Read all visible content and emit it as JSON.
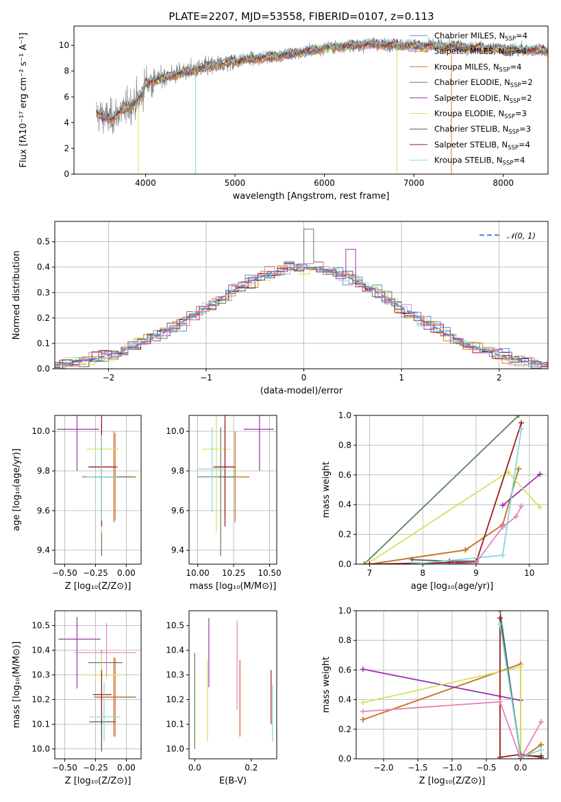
{
  "page": {
    "title": "PLATE=2207, MJD=53558, FIBERID=0107, z=0.113"
  },
  "series": [
    {
      "name": "Chabrier MILES, N$_{SSP}$=4",
      "label": "Chabrier MILES, N",
      "sub": "SSP",
      "tail": "=4",
      "color": "#5b8ed6"
    },
    {
      "name": "Salpeter MILES, N$_{SSP}$=4",
      "label": "Salpeter MILES, N",
      "sub": "SSP",
      "tail": "=4",
      "color": "#e8702a"
    },
    {
      "name": "Kroupa MILES, N$_{SSP}$=4",
      "label": "Kroupa MILES, N",
      "sub": "SSP",
      "tail": "=4",
      "color": "#c87a2a"
    },
    {
      "name": "Chabrier ELODIE, N$_{SSP}$=2",
      "label": "Chabrier ELODIE, N",
      "sub": "SSP",
      "tail": "=2",
      "color": "#5a7f5a"
    },
    {
      "name": "Salpeter ELODIE, N$_{SSP}$=2",
      "label": "Salpeter ELODIE, N",
      "sub": "SSP",
      "tail": "=2",
      "color": "#9c2fae"
    },
    {
      "name": "Kroupa ELODIE, N$_{SSP}$=3",
      "label": "Kroupa ELODIE, N",
      "sub": "SSP",
      "tail": "=3",
      "color": "#d4e25a"
    },
    {
      "name": "Chabrier STELIB, N$_{SSP}$=3",
      "label": "Chabrier STELIB, N",
      "sub": "SSP",
      "tail": "=3",
      "color": "#555555"
    },
    {
      "name": "Salpeter STELIB, N$_{SSP}$=4",
      "label": "Salpeter STELIB, N",
      "sub": "SSP",
      "tail": "=4",
      "color": "#9b1c1c"
    },
    {
      "name": "Kroupa STELIB, N$_{SSP}$=4",
      "label": "Kroupa STELIB, N",
      "sub": "SSP",
      "tail": "=4",
      "color": "#7fd8e0"
    }
  ],
  "chart_data": [
    {
      "id": "spectrum",
      "type": "line",
      "title": "PLATE=2207, MJD=53558, FIBERID=0107, z=0.113",
      "xlabel": "wavelength [Angstrom, rest frame]",
      "ylabel": "Flux [fλ10⁻¹⁷ erg cm⁻² s⁻¹ A⁻¹]",
      "xlim": [
        3200,
        8500
      ],
      "ylim": [
        0,
        11.5
      ],
      "xticks": [
        4000,
        5000,
        6000,
        7000,
        8000
      ],
      "yticks": [
        0,
        2,
        4,
        6,
        8,
        10
      ],
      "grid": false,
      "legend": "top-right",
      "continuum_x": [
        3450,
        3600,
        3800,
        3950,
        4000,
        4300,
        4600,
        5000,
        5500,
        6000,
        6500,
        7000,
        7500,
        8000,
        8500
      ],
      "continuum_y": [
        4.7,
        4.3,
        5.2,
        6.0,
        7.1,
        7.7,
        8.2,
        8.8,
        9.2,
        9.8,
        10.1,
        10.0,
        9.9,
        9.7,
        9.6
      ],
      "data_color": "#808080",
      "sharp_drops_x": [
        3920,
        4560,
        6810,
        7420
      ]
    },
    {
      "id": "residual_histogram",
      "type": "bar",
      "xlabel": "(data-model)/error",
      "ylabel": "Normed distribution",
      "xlim": [
        -2.55,
        2.5
      ],
      "ylim": [
        0,
        0.58
      ],
      "xticks": [
        -2,
        -1,
        0,
        1,
        2
      ],
      "yticks": [
        0.0,
        0.1,
        0.2,
        0.3,
        0.4,
        0.5
      ],
      "grid": true,
      "legend": "top-right",
      "reference": {
        "name": "$\\mathcal{N}(0,1)$",
        "label": "𝒩(0, 1)",
        "color": "#5b8ed6",
        "dash": true
      },
      "bin_width": 0.1
    },
    {
      "id": "age_vs_Z",
      "type": "scatter",
      "xlabel": "Z [log₁₀(Z/Z⊙)]",
      "ylabel": "age  [log₁₀(age/yr)]",
      "xlim": [
        -0.58,
        0.12
      ],
      "ylim": [
        9.33,
        10.08
      ],
      "xticks": [
        -0.5,
        -0.25,
        0.0
      ],
      "yticks": [
        9.4,
        9.6,
        9.8,
        10.0
      ],
      "grid": true,
      "points": [
        {
          "s": 0,
          "x": -0.1,
          "y": 9.77,
          "xerr": [
            0.18,
            0.18
          ],
          "yerr": [
            0.23,
            0.23
          ]
        },
        {
          "s": 1,
          "x": -0.1,
          "y": 9.77,
          "xerr": [
            0.17,
            0.18
          ],
          "yerr": [
            0.22,
            0.23
          ]
        },
        {
          "s": 2,
          "x": -0.09,
          "y": 9.77,
          "xerr": [
            0.18,
            0.17
          ],
          "yerr": [
            0.22,
            0.22
          ]
        },
        {
          "s": 3,
          "x": -0.2,
          "y": 9.77,
          "xerr": [
            0.16,
            0.24
          ],
          "yerr": [
            0.4,
            0.25
          ]
        },
        {
          "s": 4,
          "x": -0.4,
          "y": 10.01,
          "xerr": [
            0.16,
            0.18
          ],
          "yerr": [
            0.21,
            0.21
          ]
        },
        {
          "s": 5,
          "x": -0.2,
          "y": 9.91,
          "xerr": [
            0.12,
            0.14
          ],
          "yerr": [
            0.42,
            0.23
          ]
        },
        {
          "s": 6,
          "x": -0.2,
          "y": 9.82,
          "xerr": [
            0.11,
            0.13
          ],
          "yerr": [
            0.25,
            0.23
          ]
        },
        {
          "s": 7,
          "x": -0.2,
          "y": 9.82,
          "xerr": [
            0.1,
            0.11
          ],
          "yerr": [
            0.3,
            0.26
          ]
        },
        {
          "s": 8,
          "x": -0.2,
          "y": 9.77,
          "xerr": [
            0.12,
            0.12
          ],
          "yerr": [
            0.22,
            0.21
          ]
        }
      ]
    },
    {
      "id": "age_vs_mass",
      "type": "scatter",
      "xlabel": "mass [log₁₀(M/M⊙)]",
      "ylabel": "",
      "xlim": [
        9.94,
        10.55
      ],
      "ylim": [
        9.33,
        10.08
      ],
      "xticks": [
        10.0,
        10.25,
        10.5
      ],
      "yticks": [
        9.4,
        9.6,
        9.8,
        10.0
      ],
      "grid": true,
      "points": [
        {
          "s": 0,
          "x": 10.26,
          "y": 9.77,
          "xerr": [
            0.12,
            0.1
          ],
          "yerr": [
            0.23,
            0.23
          ]
        },
        {
          "s": 1,
          "x": 10.26,
          "y": 9.77,
          "xerr": [
            0.12,
            0.1
          ],
          "yerr": [
            0.22,
            0.23
          ]
        },
        {
          "s": 2,
          "x": 10.26,
          "y": 9.77,
          "xerr": [
            0.12,
            0.1
          ],
          "yerr": [
            0.22,
            0.22
          ]
        },
        {
          "s": 3,
          "x": 10.16,
          "y": 9.77,
          "xerr": [
            0.16,
            0.1
          ],
          "yerr": [
            0.4,
            0.25
          ]
        },
        {
          "s": 4,
          "x": 10.43,
          "y": 10.01,
          "xerr": [
            0.11,
            0.1
          ],
          "yerr": [
            0.21,
            0.21
          ]
        },
        {
          "s": 5,
          "x": 10.13,
          "y": 9.91,
          "xerr": [
            0.1,
            0.1
          ],
          "yerr": [
            0.42,
            0.23
          ]
        },
        {
          "s": 6,
          "x": 10.19,
          "y": 9.82,
          "xerr": [
            0.08,
            0.07
          ],
          "yerr": [
            0.25,
            0.23
          ]
        },
        {
          "s": 7,
          "x": 10.19,
          "y": 9.82,
          "xerr": [
            0.08,
            0.07
          ],
          "yerr": [
            0.3,
            0.26
          ]
        },
        {
          "s": 8,
          "x": 10.1,
          "y": 9.81,
          "xerr": [
            0.1,
            0.1
          ],
          "yerr": [
            0.22,
            0.21
          ]
        }
      ]
    },
    {
      "id": "mass_weight_vs_age",
      "type": "line",
      "xlabel": "age  [log₁₀(age/yr)]",
      "ylabel": "mass weight",
      "xlim": [
        6.75,
        10.35
      ],
      "ylim": [
        0,
        1.0
      ],
      "xticks": [
        7,
        8,
        9,
        10
      ],
      "yticks": [
        0.0,
        0.2,
        0.4,
        0.6,
        0.8,
        1.0
      ],
      "grid": true,
      "series": [
        {
          "s": 0,
          "x": [
            7.0,
            8.8,
            9.5,
            9.8
          ],
          "y": [
            0.0,
            0.095,
            0.265,
            0.64
          ]
        },
        {
          "s": 1,
          "x": [
            7.0,
            8.8,
            9.5,
            9.8
          ],
          "y": [
            0.0,
            0.095,
            0.265,
            0.64
          ]
        },
        {
          "s": 2,
          "x": [
            7.0,
            8.8,
            9.5,
            9.8
          ],
          "y": [
            0.0,
            0.095,
            0.265,
            0.64
          ]
        },
        {
          "s": 3,
          "x": [
            6.9,
            9.8
          ],
          "y": [
            0.0,
            1.0
          ]
        },
        {
          "s": 4,
          "x": [
            9.5,
            10.2
          ],
          "y": [
            0.395,
            0.605
          ]
        },
        {
          "s": 5,
          "x": [
            6.95,
            9.6,
            10.2
          ],
          "y": [
            0.0,
            0.62,
            0.38
          ]
        },
        {
          "s": 6,
          "x": [
            7.8,
            8.5,
            9.0
          ],
          "y": [
            0.03,
            0.02,
            0.02
          ]
        },
        {
          "s": 7,
          "x": [
            7.0,
            8.5,
            9.0,
            9.85
          ],
          "y": [
            0.0,
            0.01,
            0.01,
            0.95
          ]
        },
        {
          "s": 8,
          "x": [
            7.8,
            9.5,
            9.85
          ],
          "y": [
            0.0,
            0.06,
            0.91
          ]
        },
        {
          "s": 9,
          "x": [
            8.6,
            9.0,
            9.5,
            9.75,
            9.85
          ],
          "y": [
            0.0,
            0.01,
            0.25,
            0.32,
            0.39
          ]
        }
      ]
    },
    {
      "id": "mass_vs_Z",
      "type": "scatter",
      "xlabel": "Z [log₁₀(Z/Z⊙)]",
      "ylabel": "mass [log₁₀(M/M⊙)]",
      "xlim": [
        -0.58,
        0.12
      ],
      "ylim": [
        9.96,
        10.56
      ],
      "xticks": [
        -0.5,
        -0.25,
        0.0
      ],
      "yticks": [
        10.0,
        10.1,
        10.2,
        10.3,
        10.4,
        10.5
      ],
      "grid": true,
      "points": [
        {
          "s": 0,
          "x": -0.1,
          "y": 10.21,
          "xerr": [
            0.16,
            0.18
          ],
          "yerr": [
            0.16,
            0.16
          ]
        },
        {
          "s": 1,
          "x": -0.1,
          "y": 10.21,
          "xerr": [
            0.16,
            0.17
          ],
          "yerr": [
            0.16,
            0.16
          ]
        },
        {
          "s": 2,
          "x": -0.09,
          "y": 10.21,
          "xerr": [
            0.17,
            0.16
          ],
          "yerr": [
            0.16,
            0.16
          ]
        },
        {
          "s": 3,
          "x": -0.2,
          "y": 10.35,
          "xerr": [
            0.11,
            0.17
          ],
          "yerr": [
            0.35,
            0.05
          ]
        },
        {
          "s": 4,
          "x": -0.4,
          "y": 10.445,
          "xerr": [
            0.15,
            0.19
          ],
          "yerr": [
            0.2,
            0.09
          ]
        },
        {
          "s": 5,
          "x": -0.2,
          "y": 10.3,
          "xerr": [
            0.14,
            0.16
          ],
          "yerr": [
            0.12,
            0.09
          ]
        },
        {
          "s": 6,
          "x": -0.2,
          "y": 10.11,
          "xerr": [
            0.1,
            0.11
          ],
          "yerr": [
            0.12,
            0.1
          ]
        },
        {
          "s": 7,
          "x": -0.2,
          "y": 10.22,
          "xerr": [
            0.07,
            0.08
          ],
          "yerr": [
            0.12,
            0.1
          ]
        },
        {
          "s": 8,
          "x": -0.18,
          "y": 10.13,
          "xerr": [
            0.12,
            0.13
          ],
          "yerr": [
            0.1,
            0.14
          ]
        },
        {
          "s": 9,
          "x": -0.16,
          "y": 10.39,
          "xerr": [
            0.26,
            0.24
          ],
          "yerr": [
            0.1,
            0.12
          ]
        }
      ]
    },
    {
      "id": "mass_vs_EBV",
      "type": "scatter",
      "xlabel": "E(B-V)",
      "ylabel": "",
      "xlim": [
        -0.02,
        0.29
      ],
      "ylim": [
        9.96,
        10.56
      ],
      "xticks": [
        0.0,
        0.2
      ],
      "yticks": [
        10.0,
        10.1,
        10.2,
        10.3,
        10.4,
        10.5
      ],
      "grid": false,
      "points": [
        {
          "s": 3,
          "x": 0.0,
          "y": 10.2,
          "xerr": [
            0,
            0
          ],
          "yerr": [
            0.2,
            0.19
          ]
        },
        {
          "s": 4,
          "x": 0.05,
          "y": 10.39,
          "xerr": [
            0,
            0
          ],
          "yerr": [
            0.14,
            0.14
          ]
        },
        {
          "s": 5,
          "x": 0.045,
          "y": 10.18,
          "xerr": [
            0,
            0
          ],
          "yerr": [
            0.15,
            0.18
          ]
        },
        {
          "s": 9,
          "x": 0.15,
          "y": 10.34,
          "xerr": [
            0,
            0
          ],
          "yerr": [
            0.18,
            0.18
          ]
        },
        {
          "s": 0,
          "x": 0.16,
          "y": 10.21,
          "xerr": [
            0,
            0
          ],
          "yerr": [
            0.16,
            0.15
          ]
        },
        {
          "s": 1,
          "x": 0.16,
          "y": 10.21,
          "xerr": [
            0,
            0
          ],
          "yerr": [
            0.16,
            0.15
          ]
        },
        {
          "s": 7,
          "x": 0.27,
          "y": 10.21,
          "xerr": [
            0,
            0
          ],
          "yerr": [
            0.11,
            0.11
          ]
        },
        {
          "s": 8,
          "x": 0.275,
          "y": 10.13,
          "xerr": [
            0,
            0
          ],
          "yerr": [
            0.1,
            0.13
          ]
        }
      ]
    },
    {
      "id": "mass_weight_vs_Z",
      "type": "line",
      "xlabel": "Z [log₁₀(Z/Z⊙)]",
      "ylabel": "mass weight",
      "xlim": [
        -2.4,
        0.4
      ],
      "ylim": [
        0,
        1.0
      ],
      "xticks": [
        -2.0,
        -1.5,
        -1.0,
        -0.5,
        0.0
      ],
      "yticks": [
        0.0,
        0.2,
        0.4,
        0.6,
        0.8,
        1.0
      ],
      "grid": true,
      "series": [
        {
          "s": 0,
          "x": [
            -2.3,
            0.0,
            0.0,
            0.3
          ],
          "y": [
            0.265,
            0.64,
            0.0,
            0.095
          ]
        },
        {
          "s": 1,
          "x": [
            -2.3,
            0.0,
            0.0,
            0.3
          ],
          "y": [
            0.265,
            0.64,
            0.0,
            0.095
          ]
        },
        {
          "s": 2,
          "x": [
            -2.3,
            0.0,
            0.0,
            0.3
          ],
          "y": [
            0.265,
            0.64,
            0.0,
            0.095
          ]
        },
        {
          "s": 3,
          "x": [
            -0.3,
            0.0,
            0.3
          ],
          "y": [
            1.0,
            0.0,
            0.0
          ]
        },
        {
          "s": 4,
          "x": [
            -2.3,
            0.0
          ],
          "y": [
            0.605,
            0.395
          ]
        },
        {
          "s": 5,
          "x": [
            -2.3,
            0.0,
            0.0
          ],
          "y": [
            0.38,
            0.62,
            0.0
          ]
        },
        {
          "s": 6,
          "x": [
            -0.3,
            0.0,
            0.3
          ],
          "y": [
            0.95,
            0.02,
            0.02
          ]
        },
        {
          "s": 7,
          "x": [
            -0.3,
            -0.3,
            0.0,
            0.3
          ],
          "y": [
            0.95,
            0.01,
            0.03,
            0.01
          ]
        },
        {
          "s": 8,
          "x": [
            -0.3,
            0.0,
            0.3
          ],
          "y": [
            0.91,
            0.01,
            0.06
          ]
        },
        {
          "s": 9,
          "x": [
            -2.3,
            -0.3,
            0.0,
            0.3
          ],
          "y": [
            0.32,
            0.385,
            0.0,
            0.25
          ]
        }
      ]
    }
  ],
  "extra_colors": {
    "pink": "#e87fb8"
  }
}
